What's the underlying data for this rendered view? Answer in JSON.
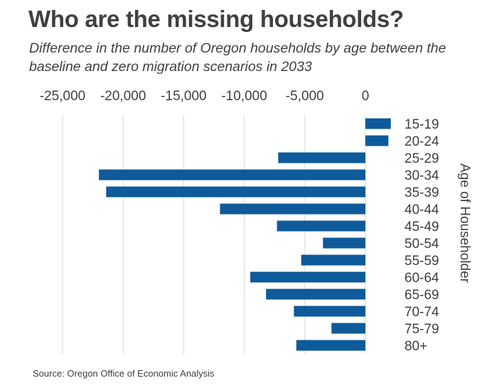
{
  "title": "Who are the missing households?",
  "subtitle": "Difference in the number of Oregon households by age between the baseline and zero migration scenarios in 2033",
  "source": "Source: Oregon Office of Economic Analysis",
  "colors": {
    "bar": "#0E5A9A",
    "grid": "#D9D9D9",
    "text": "#404040"
  },
  "chart_data": {
    "type": "bar",
    "orientation": "horizontal",
    "categories": [
      "15-19",
      "20-24",
      "25-29",
      "30-34",
      "35-39",
      "40-44",
      "45-49",
      "50-54",
      "55-59",
      "60-64",
      "65-69",
      "70-74",
      "75-79",
      "80+"
    ],
    "values": [
      2100,
      1900,
      -7200,
      -22000,
      -21400,
      -12000,
      -7300,
      -3500,
      -5300,
      -9500,
      -8200,
      -5900,
      -2800,
      -5700
    ],
    "xlim": [
      -25000,
      0
    ],
    "xticks": [
      -25000,
      -20000,
      -15000,
      -10000,
      -5000,
      0
    ],
    "xtick_labels": [
      "-25,000",
      "-20,000",
      "-15,000",
      "-10,000",
      "-5,000",
      "0"
    ],
    "xaxis_position": "top",
    "ylabel": "Age of Householder",
    "ylabel_position": "right",
    "grid": true,
    "legend": false
  }
}
